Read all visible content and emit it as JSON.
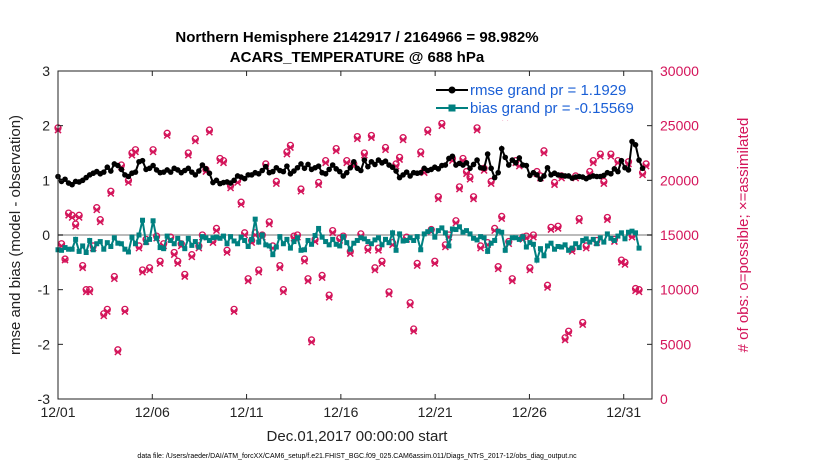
{
  "chart_data": {
    "type": "line",
    "title_line1": "Northern Hemisphere 2142917 / 2164966 = 98.982%",
    "title_line2": "ACARS_TEMPERATURE @ 688 hPa",
    "xlabel": "Dec.01,2017 00:00:00 start",
    "ylabel_left": "rmse and bias (model - observation)",
    "ylabel_right": "# of obs: o=possible; ×=assimilated",
    "xlim": [
      0,
      31.5
    ],
    "ylim_left": [
      -3,
      3
    ],
    "ylim_right": [
      0,
      30000
    ],
    "x_ticks": [
      {
        "v": 0,
        "label": "12/01"
      },
      {
        "v": 5,
        "label": "12/06"
      },
      {
        "v": 10,
        "label": "12/11"
      },
      {
        "v": 15,
        "label": "12/16"
      },
      {
        "v": 20,
        "label": "12/21"
      },
      {
        "v": 25,
        "label": "12/26"
      },
      {
        "v": 30,
        "label": "12/31"
      }
    ],
    "y_ticks_left": [
      {
        "v": -3,
        "label": "-3"
      },
      {
        "v": -2,
        "label": "-2"
      },
      {
        "v": -1,
        "label": "-1"
      },
      {
        "v": 0,
        "label": "0"
      },
      {
        "v": 1,
        "label": "1"
      },
      {
        "v": 2,
        "label": "2"
      },
      {
        "v": 3,
        "label": "3"
      }
    ],
    "y_ticks_right": [
      {
        "v": 0,
        "label": "0"
      },
      {
        "v": 5000,
        "label": "5000"
      },
      {
        "v": 10000,
        "label": "10000"
      },
      {
        "v": 15000,
        "label": "15000"
      },
      {
        "v": 20000,
        "label": "20000"
      },
      {
        "v": 25000,
        "label": "25000"
      },
      {
        "v": 30000,
        "label": "30000"
      }
    ],
    "legend": [
      {
        "name": "rmse",
        "label": "rmse grand pr = 1.1929",
        "color": "#000000"
      },
      {
        "name": "bias",
        "label": "bias grand pr = -0.15569",
        "color": "#008080"
      }
    ],
    "colors": {
      "rmse": "#000000",
      "bias": "#008080",
      "obs": "#d4145a",
      "zero": "#bbbbbb"
    },
    "rmse": [
      1.07,
      0.98,
      1.02,
      0.95,
      0.92,
      0.98,
      0.97,
      1.0,
      1.05,
      1.1,
      1.13,
      1.16,
      1.12,
      1.15,
      1.24,
      1.17,
      1.3,
      1.27,
      1.2,
      1.1,
      1.07,
      1.13,
      1.15,
      1.34,
      1.36,
      1.2,
      1.22,
      1.27,
      1.19,
      1.14,
      1.15,
      1.19,
      1.15,
      1.22,
      1.19,
      1.14,
      1.18,
      1.22,
      1.15,
      1.1,
      1.17,
      1.28,
      1.21,
      1.13,
      0.96,
      1.0,
      0.94,
      0.96,
      0.97,
      0.95,
      1.0,
      1.08,
      1.06,
      1.03,
      1.1,
      1.1,
      1.14,
      1.12,
      1.18,
      1.25,
      1.14,
      1.16,
      1.23,
      1.18,
      1.16,
      1.26,
      1.12,
      1.17,
      1.23,
      1.3,
      1.22,
      1.29,
      1.2,
      1.23,
      1.26,
      1.14,
      1.12,
      1.2,
      1.28,
      1.21,
      1.16,
      1.08,
      1.14,
      1.23,
      1.34,
      1.22,
      1.18,
      1.37,
      1.25,
      1.34,
      1.29,
      1.37,
      1.32,
      1.35,
      1.28,
      1.24,
      1.17,
      1.05,
      1.1,
      1.15,
      1.08,
      1.14,
      1.13,
      1.14,
      1.22,
      1.18,
      1.2,
      1.24,
      1.21,
      1.27,
      1.28,
      1.4,
      1.44,
      1.28,
      1.31,
      1.28,
      1.32,
      1.22,
      1.29,
      1.37,
      1.23,
      1.22,
      1.48,
      1.22,
      1.05,
      1.14,
      1.58,
      1.42,
      1.28,
      1.37,
      1.32,
      1.41,
      1.28,
      1.27,
      1.09,
      1.14,
      1.1,
      1.02,
      1.08,
      1.23,
      1.1,
      1.13,
      1.1,
      1.09,
      1.08,
      1.08,
      1.04,
      1.06,
      1.07,
      1.06,
      1.03,
      1.06,
      1.08,
      1.07,
      1.07,
      1.09,
      1.14,
      1.12,
      1.21,
      1.16,
      1.36,
      1.23,
      1.19,
      1.71,
      1.65,
      1.37,
      1.22
    ],
    "bias": [
      -0.27,
      -0.28,
      -0.23,
      -0.26,
      -0.26,
      -0.08,
      -0.3,
      -0.2,
      -0.32,
      -0.1,
      -0.27,
      -0.16,
      -0.12,
      -0.26,
      -0.14,
      -0.21,
      -0.05,
      -0.15,
      -0.16,
      -0.26,
      -0.31,
      -0.04,
      -0.16,
      0.0,
      0.27,
      -0.14,
      -0.08,
      0.26,
      -0.06,
      -0.23,
      -0.25,
      -0.02,
      -0.1,
      -0.16,
      -0.06,
      -0.15,
      -0.25,
      -0.06,
      -0.19,
      -0.12,
      -0.22,
      -0.03,
      -0.05,
      -0.1,
      -0.05,
      -0.04,
      -0.06,
      -0.02,
      -0.16,
      -0.03,
      -0.11,
      -0.16,
      -0.04,
      -0.1,
      -0.21,
      -0.08,
      0.29,
      -0.13,
      0.0,
      -0.18,
      -0.2,
      -0.36,
      -0.22,
      -0.03,
      -0.16,
      -0.08,
      -0.24,
      -0.12,
      -0.05,
      -0.28,
      -0.27,
      -0.1,
      -0.17,
      -0.01,
      0.12,
      -0.04,
      -0.12,
      -0.18,
      -0.08,
      -0.17,
      -0.2,
      -0.03,
      -0.14,
      -0.26,
      -0.15,
      -0.1,
      -0.05,
      -0.07,
      -0.12,
      -0.16,
      -0.09,
      -0.05,
      -0.18,
      -0.08,
      -0.14,
      0.04,
      -0.28,
      0.02,
      -0.11,
      -0.1,
      -0.05,
      -0.1,
      -0.03,
      -0.27,
      0.02,
      0.06,
      0.1,
      -0.04,
      0.08,
      0.13,
      0.04,
      -0.2,
      0.11,
      0.1,
      0.15,
      0.05,
      0.08,
      0.02,
      -0.06,
      -0.09,
      -0.03,
      -0.05,
      -0.3,
      -0.15,
      -0.1,
      0.07,
      0.05,
      -0.28,
      -0.14,
      -0.05,
      -0.05,
      -0.08,
      -0.03,
      -0.22,
      -0.14,
      -0.17,
      -0.46,
      -0.25,
      -0.38,
      -0.2,
      -0.15,
      -0.26,
      -0.21,
      -0.22,
      -0.18,
      -0.28,
      -0.24,
      -0.16,
      -0.23,
      -0.1,
      -0.07,
      -0.13,
      -0.08,
      -0.16,
      -0.05,
      -0.13,
      0.02,
      -0.06,
      -0.1,
      -0.02,
      0.04,
      -0.07,
      0.05,
      0.07,
      0.04,
      -0.24
    ],
    "obs_possible": [
      24800,
      14200,
      12800,
      17000,
      16800,
      16000,
      16800,
      12200,
      10000,
      10000,
      14000,
      17500,
      16400,
      7800,
      8200,
      19000,
      11200,
      4500,
      21400,
      8200,
      20000,
      22500,
      22800,
      14000,
      11800,
      14600,
      12000,
      22800,
      14900,
      12600,
      14200,
      24300,
      14800,
      13400,
      12600,
      14200,
      11400,
      22500,
      13200,
      23800,
      14000,
      15000,
      21000,
      24600,
      14500,
      15600,
      22000,
      21800,
      13600,
      19500,
      8200,
      20000,
      18000,
      15200,
      11000,
      14500,
      15200,
      11800,
      15000,
      21500,
      16200,
      14000,
      19900,
      12200,
      10000,
      22600,
      23200,
      14900,
      15000,
      19200,
      12800,
      11000,
      5400,
      14600,
      19800,
      11300,
      21800,
      9500,
      15400,
      22900,
      14700,
      14900,
      21800,
      13500,
      21500,
      24000,
      15100,
      22500,
      13800,
      24100,
      12000,
      13800,
      12600,
      23000,
      9800,
      14300,
      21500,
      22100,
      23900,
      14800,
      8800,
      6400,
      12400,
      22600,
      20900,
      24600,
      15500,
      12600,
      18500,
      25200,
      14100,
      15000,
      22000,
      16300,
      19400,
      22000,
      20800,
      20300,
      18500,
      24800,
      14000,
      21100,
      14300,
      19900,
      15600,
      12100,
      16700,
      26000,
      14400,
      11000,
      21800,
      21500,
      14800,
      14900,
      12000,
      15000,
      20800,
      20400,
      22700,
      10400,
      15700,
      19800,
      15800,
      20400,
      5600,
      6200,
      13700,
      20400,
      16500,
      7000,
      14000,
      20800,
      21800,
      14500,
      22400,
      19900,
      16600,
      22400,
      14600,
      21800,
      12700,
      12500,
      21700,
      15000,
      10100,
      10000,
      20700,
      21500
    ],
    "obs_assim": [
      24600,
      14000,
      12700,
      16800,
      16600,
      15800,
      16600,
      12000,
      9800,
      9800,
      13800,
      17300,
      16200,
      7600,
      8000,
      18800,
      11000,
      4300,
      21200,
      8000,
      19800,
      22300,
      22600,
      13800,
      11600,
      14400,
      11800,
      22600,
      14700,
      12400,
      14000,
      24100,
      14600,
      13200,
      12400,
      14000,
      11200,
      22300,
      13000,
      23600,
      13800,
      14800,
      20800,
      24400,
      14300,
      15400,
      21800,
      21600,
      13400,
      19300,
      8000,
      19800,
      17800,
      15000,
      10800,
      14300,
      15000,
      11600,
      14800,
      21300,
      16000,
      13800,
      19700,
      12000,
      9800,
      22400,
      23000,
      14700,
      14800,
      19000,
      12600,
      10800,
      5200,
      14400,
      19600,
      11100,
      21600,
      9300,
      15200,
      22700,
      14500,
      14700,
      21600,
      13300,
      21300,
      23800,
      14900,
      22300,
      13600,
      23900,
      11800,
      13600,
      12400,
      22800,
      9600,
      14100,
      21300,
      21900,
      23700,
      14600,
      8600,
      6200,
      12200,
      22400,
      20700,
      24400,
      15300,
      12400,
      18300,
      25000,
      13900,
      14800,
      21800,
      16100,
      19200,
      21800,
      20600,
      20100,
      18300,
      24600,
      13800,
      20900,
      14100,
      19700,
      15400,
      11900,
      16500,
      25800,
      14200,
      10800,
      21600,
      21300,
      14600,
      14700,
      11800,
      14800,
      20600,
      20200,
      22500,
      10200,
      15500,
      19600,
      15600,
      20200,
      5400,
      6000,
      13500,
      20200,
      16300,
      6800,
      13800,
      20600,
      21600,
      14300,
      22200,
      19700,
      16400,
      22200,
      14400,
      21600,
      12500,
      12300,
      21500,
      14800,
      9900,
      9800,
      20500,
      21300
    ]
  },
  "footnote": "data file: /Users/raeder/DAI/ATM_forcXX/CAM6_setup/f.e21.FHIST_BGC.f09_025.CAM6assim.011/Diags_NTrS_2017-12/obs_diag_output.nc"
}
